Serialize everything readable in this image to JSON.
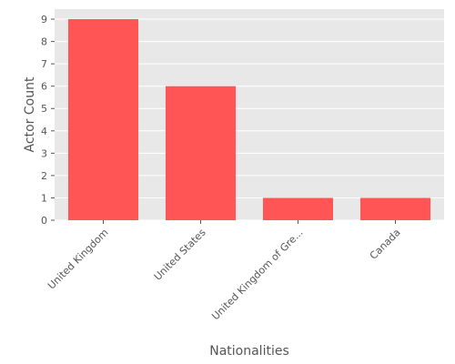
{
  "chart_data": {
    "type": "bar",
    "categories": [
      "United Kingdom",
      "United States",
      "United Kingdom of Gre...",
      "Canada"
    ],
    "values": [
      9,
      6,
      1,
      1
    ],
    "xlabel": "Nationalities",
    "ylabel": "Actor Count",
    "ylim": [
      0,
      9.45
    ],
    "yticks": [
      0,
      1,
      2,
      3,
      4,
      5,
      6,
      7,
      8,
      9
    ],
    "grid": true,
    "legend": "none"
  },
  "colors": {
    "bar": "#ff5555",
    "plot_background": "#e8e8e8",
    "grid": "#ffffff",
    "text": "#555555"
  }
}
